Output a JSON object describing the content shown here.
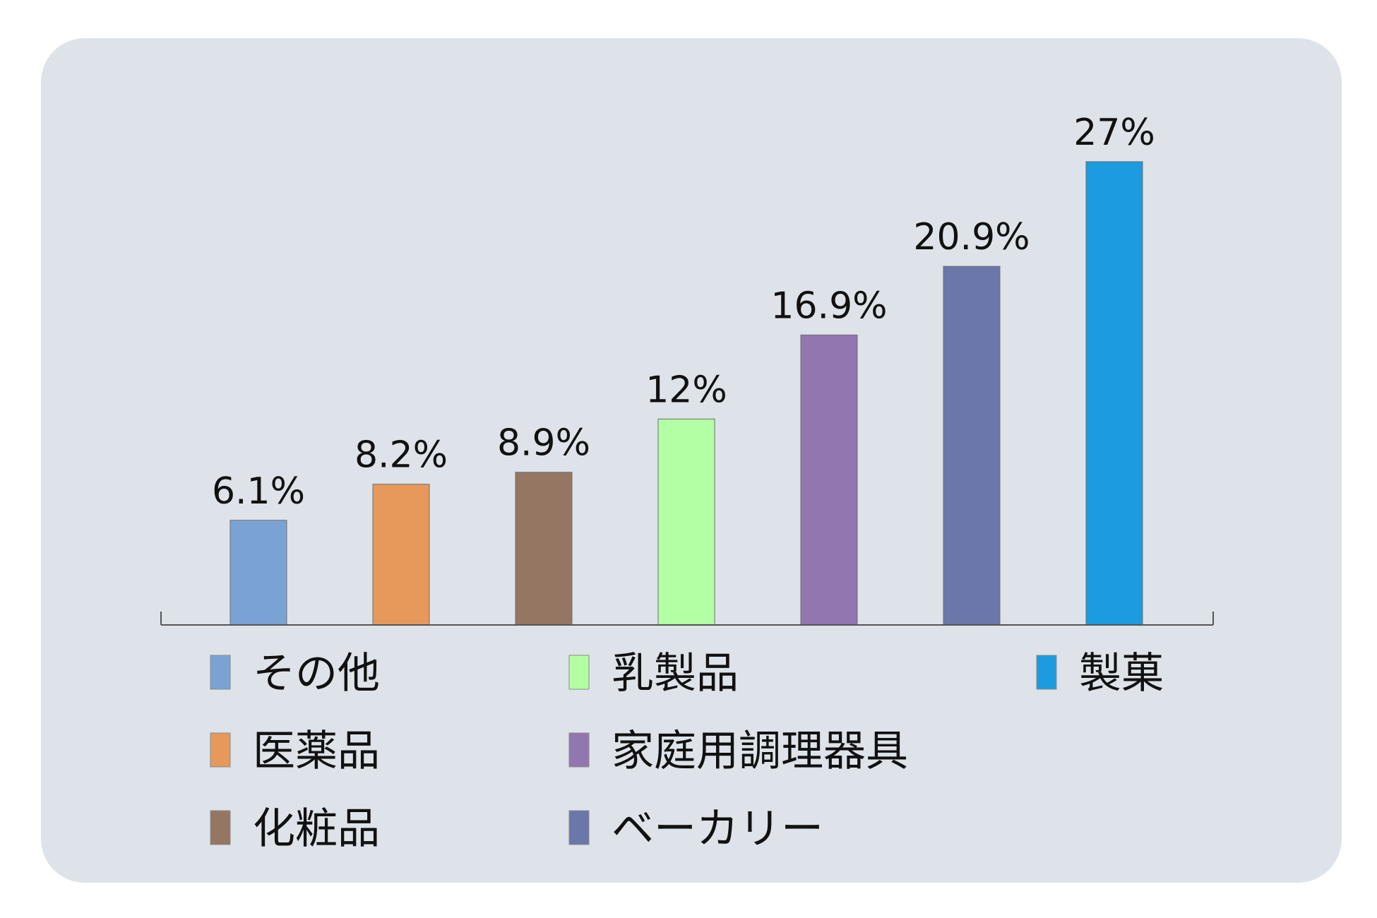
{
  "chart_data": {
    "type": "bar",
    "categories": [
      "その他",
      "医薬品",
      "化粧品",
      "乳製品",
      "家庭用調理器具",
      "ベーカリー",
      "製菓"
    ],
    "values": [
      6.1,
      8.2,
      8.9,
      12,
      16.9,
      20.9,
      27
    ],
    "value_labels": [
      "6.1%",
      "8.2%",
      "8.9%",
      "12%",
      "16.9%",
      "20.9%",
      "27%"
    ],
    "colors": [
      "#7aa2d4",
      "#e6995a",
      "#947663",
      "#b3ffa3",
      "#9276b0",
      "#6b77aa",
      "#1c9be0"
    ],
    "ylim": [
      0,
      30
    ],
    "grid": false,
    "legend": {
      "placement": "bottom",
      "entries": [
        "その他",
        "乳製品",
        "製菓",
        "医薬品",
        "家庭用調理器具",
        "化粧品",
        "ベーカリー"
      ]
    }
  }
}
